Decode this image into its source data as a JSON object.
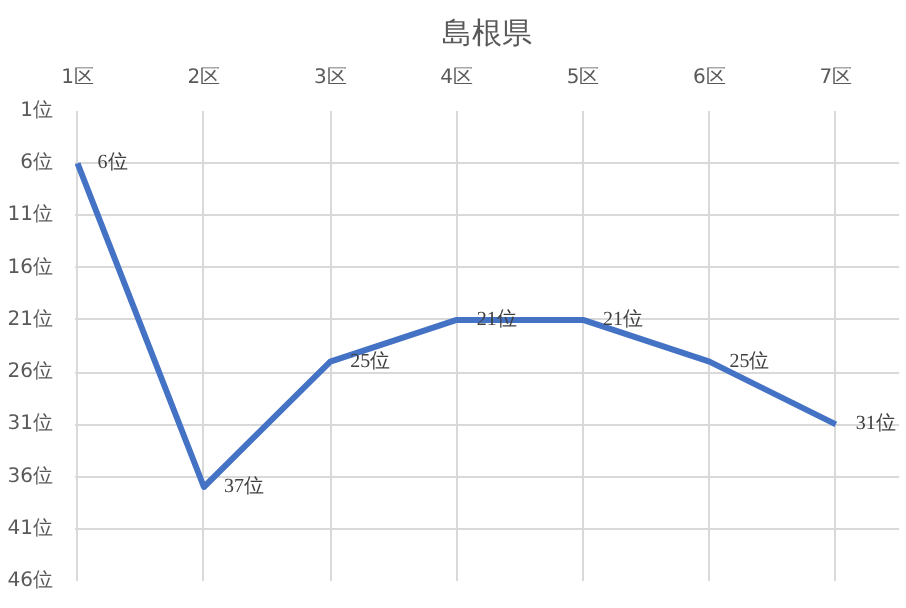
{
  "chart_data": {
    "type": "line",
    "title": "島根県",
    "categories": [
      "1区",
      "2区",
      "3区",
      "4区",
      "5区",
      "6区",
      "7区"
    ],
    "series": [
      {
        "color": "#4472c4",
        "values": [
          6,
          37,
          25,
          21,
          21,
          25,
          31
        ],
        "value_labels": [
          "6位",
          "37位",
          "25位",
          "21位",
          "21位",
          "25位",
          "31位"
        ]
      }
    ],
    "ylim": [
      46,
      1
    ],
    "yticks": [
      {
        "value": 1,
        "label": "1位"
      },
      {
        "value": 6,
        "label": "6位"
      },
      {
        "value": 11,
        "label": "11位"
      },
      {
        "value": 16,
        "label": "16位"
      },
      {
        "value": 21,
        "label": "21位"
      },
      {
        "value": 26,
        "label": "26位"
      },
      {
        "value": 31,
        "label": "31位"
      },
      {
        "value": 36,
        "label": "36位"
      },
      {
        "value": 41,
        "label": "41位"
      },
      {
        "value": 46,
        "label": "46位"
      }
    ],
    "grid": true,
    "marker": "none",
    "line_style": "solid"
  }
}
